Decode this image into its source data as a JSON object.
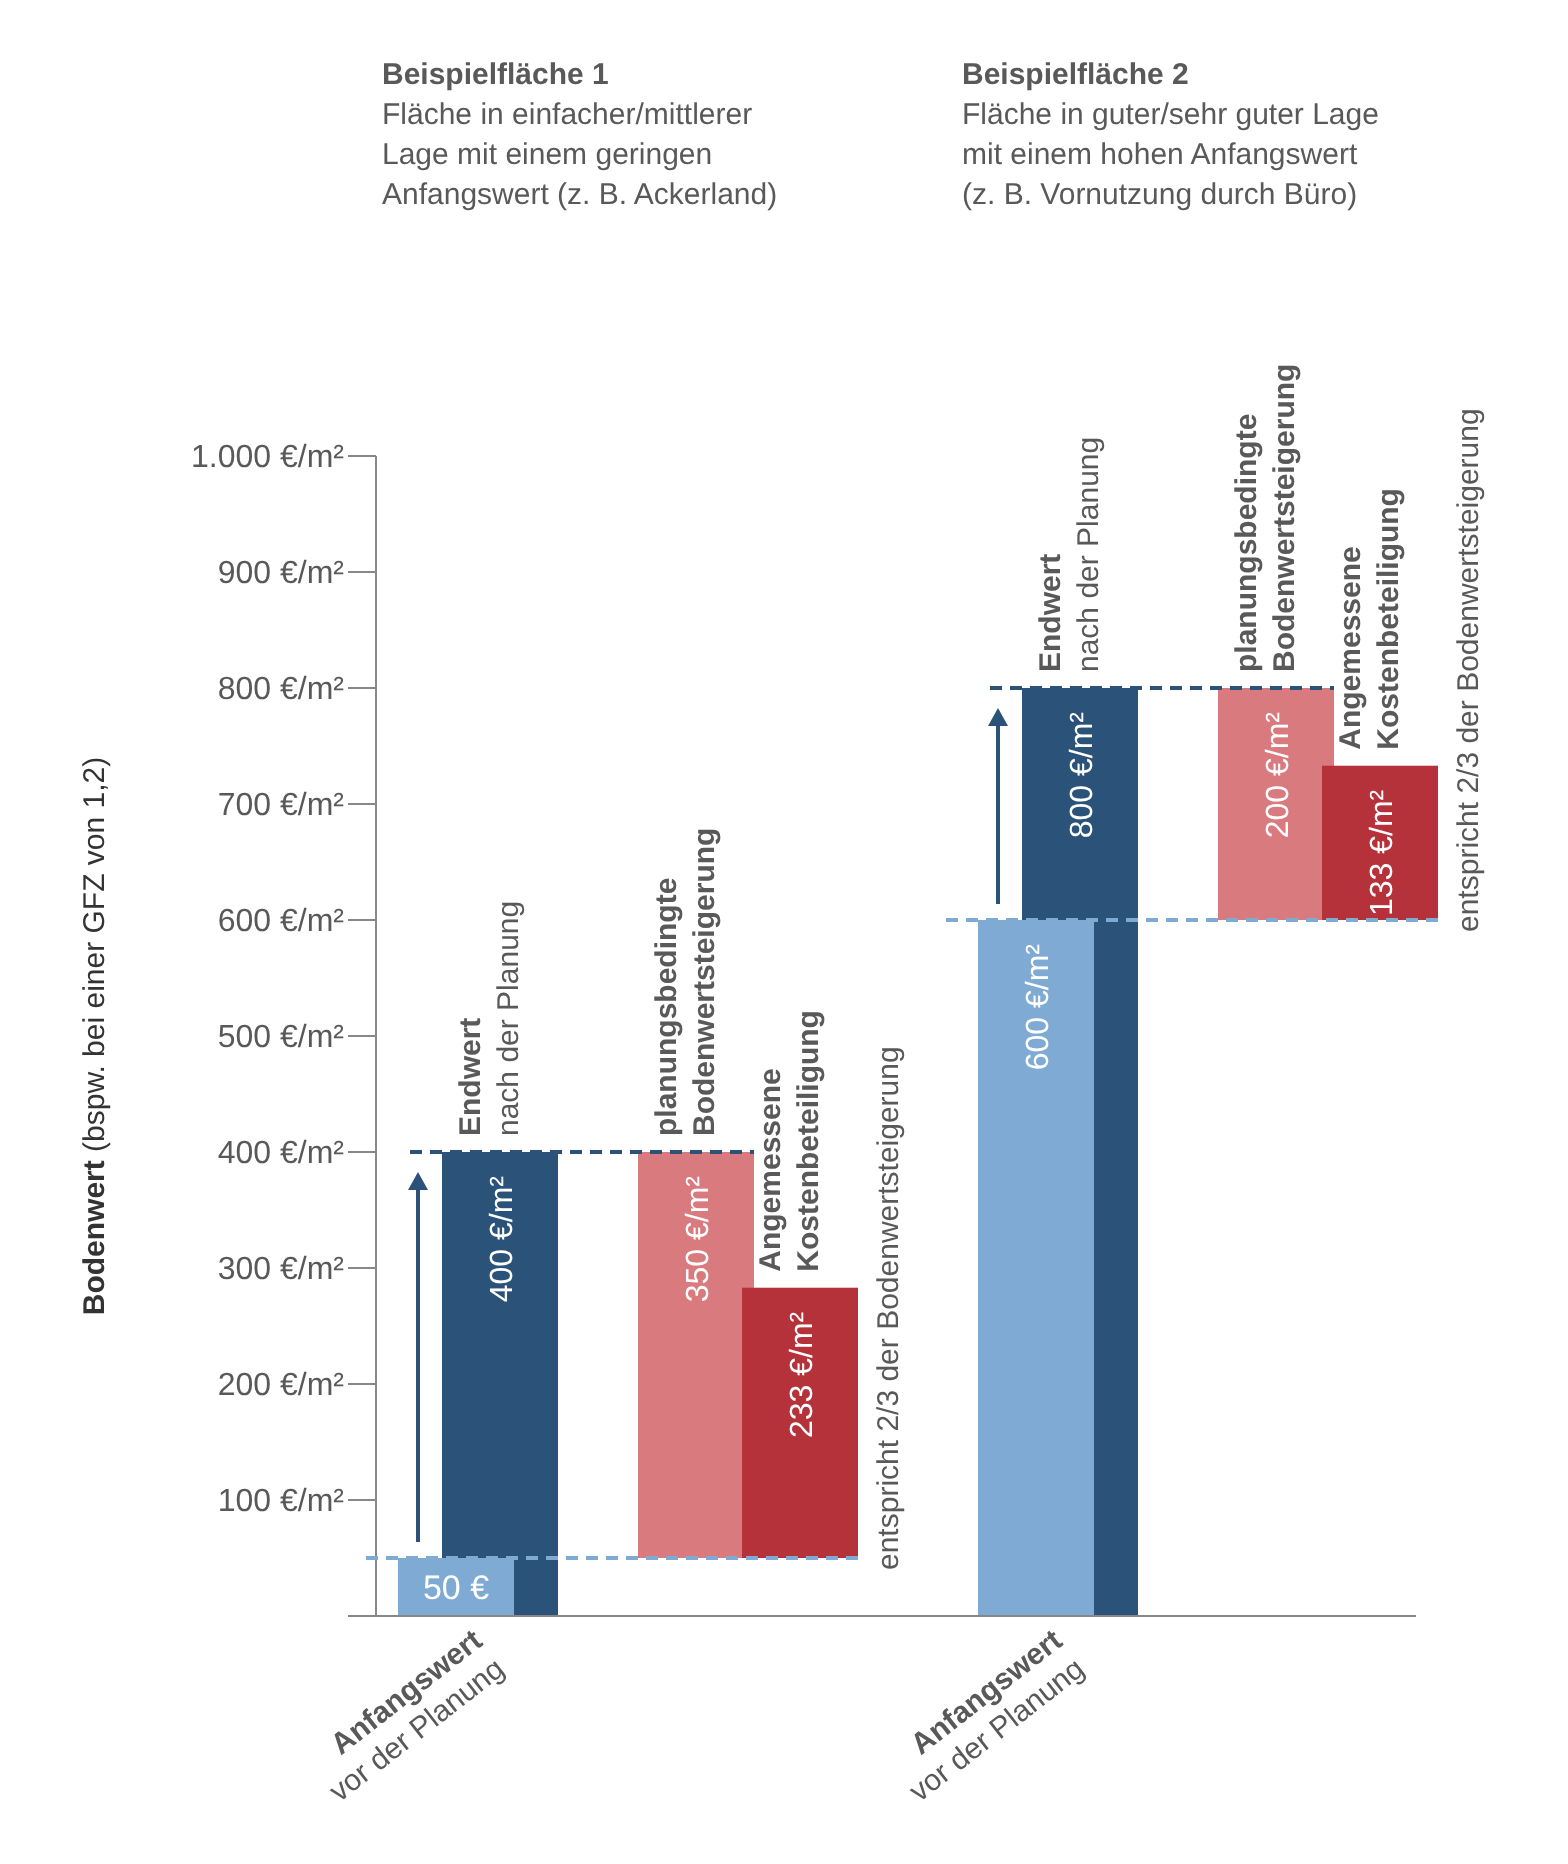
{
  "chart_data": {
    "type": "bar",
    "categories": [
      "Anfangswert vor der Planung",
      null,
      null,
      null,
      "Anfangswert vor der Planung",
      null,
      null,
      null
    ],
    "values": [
      50,
      400,
      350,
      233,
      600,
      800,
      200,
      133
    ],
    "base": [
      0,
      0,
      50,
      50,
      0,
      0,
      600,
      600
    ],
    "colors": [
      "#7faad3",
      "#2b5278",
      "#d97a7f",
      "#b5323b",
      "#7faad3",
      "#2b5278",
      "#d97a7f",
      "#b5323b"
    ],
    "value_labels": [
      "50 €",
      "400 €/m²",
      "350 €/m²",
      "233 €/m²",
      "600 €/m²",
      "800 €/m²",
      "200 €/m²",
      "133 €/m²"
    ],
    "ylabel": "Bodenwert (bspw. bei einer GFZ von 1,2)",
    "ylim": [
      0,
      1000
    ],
    "yticks": [
      {
        "value": 0,
        "label": null
      },
      {
        "value": 100,
        "label": "100 €/m²"
      },
      {
        "value": 200,
        "label": "200 €/m²"
      },
      {
        "value": 300,
        "label": "300 €/m²"
      },
      {
        "value": 400,
        "label": "400 €/m²"
      },
      {
        "value": 500,
        "label": "500 €/m²"
      },
      {
        "value": 600,
        "label": "600 €/m²"
      },
      {
        "value": 700,
        "label": "700 €/m²"
      },
      {
        "value": 800,
        "label": "800 €/m²"
      },
      {
        "value": 900,
        "label": "900 €/m²"
      },
      {
        "value": 1000,
        "label": "1.000 €/m²"
      }
    ],
    "ref_lines": [
      {
        "axis": "y",
        "value": 400,
        "color": "#2b5278",
        "line_style": "dashed"
      },
      {
        "axis": "y",
        "value": 50,
        "color": "#7faad3",
        "line_style": "dashed"
      },
      {
        "axis": "y",
        "value": 800,
        "color": "#2b5278",
        "line_style": "dashed"
      },
      {
        "axis": "y",
        "value": 600,
        "color": "#7faad3",
        "line_style": "dashed"
      }
    ],
    "annotations": [
      "Beispielfläche 1\nFläche in einfacher/mittlerer\nLage mit einem geringen\nAnfangswert (z. B. Ackerland)",
      "Beispielfläche 2\nFläche in guter/sehr guter Lage\nmit einem hohen Anfangswert\n(z. B. Vornutzung durch Büro)",
      "Endwert\nnach der Planung",
      "planungsbedingte\nBodenwertsteigerung",
      "Angemessene\nKostenbeteiligung",
      "Endwert\nnach der Planung",
      "planungsbedingte\nBodenwertsteigerung",
      "Angemessene\nKostenbeteiligung",
      "entspricht 2/3 der Bodenwertsteigerung",
      "entspricht 2/3 der Bodenwertsteigerung"
    ]
  }
}
